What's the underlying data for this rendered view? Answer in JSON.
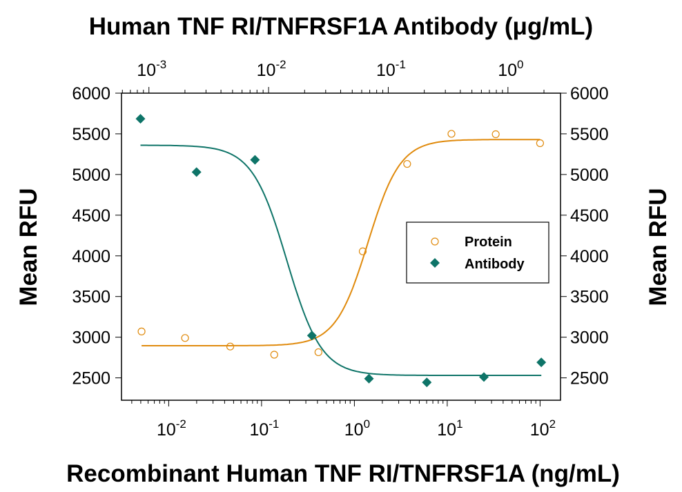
{
  "chart_data": {
    "type": "scatter",
    "title": "Human TNF RI/TNFRSF1A Antibody (μg/mL)",
    "xlabel": "Recombinant Human TNF RI/TNFRSF1A (ng/mL)",
    "ylabel": "Mean RFU",
    "ylabel_right": "Mean RFU",
    "x_scale": "log",
    "xlim": [
      0.0031,
      166
    ],
    "x2_scale": "log",
    "x2lim": [
      0.00059,
      2.75
    ],
    "ylim": [
      2225,
      6000
    ],
    "x_ticks": [
      {
        "base": "10",
        "exp": "-2",
        "value": 0.01
      },
      {
        "base": "10",
        "exp": "-1",
        "value": 0.1
      },
      {
        "base": "10",
        "exp": "0",
        "value": 1
      },
      {
        "base": "10",
        "exp": "1",
        "value": 10
      },
      {
        "base": "10",
        "exp": "2",
        "value": 100
      }
    ],
    "x2_ticks": [
      {
        "base": "10",
        "exp": "-3",
        "value": 0.001
      },
      {
        "base": "10",
        "exp": "-2",
        "value": 0.01
      },
      {
        "base": "10",
        "exp": "-1",
        "value": 0.1
      },
      {
        "base": "10",
        "exp": "0",
        "value": 1
      }
    ],
    "y_ticks": [
      "2500",
      "3000",
      "3500",
      "4000",
      "4500",
      "5000",
      "5500",
      "6000"
    ],
    "grid": false,
    "legend_position": "center-right",
    "series": [
      {
        "name": "Protein",
        "axis": "bottom",
        "marker": "open-circle",
        "color": "#E08A0C",
        "x": [
          0.0051,
          0.015,
          0.046,
          0.137,
          0.41,
          1.23,
          3.7,
          11.1,
          33.3,
          100
        ],
        "y": [
          3070,
          2990,
          2885,
          2785,
          2815,
          4055,
          5130,
          5500,
          5495,
          5385
        ],
        "fit": {
          "model": "4PL",
          "bottom": 2895,
          "top": 5430,
          "ec50": 1.4,
          "hill": 2.5
        }
      },
      {
        "name": "Antibody",
        "axis": "top",
        "marker": "filled-diamond",
        "color": "#0E7468",
        "x": [
          0.00085,
          0.0025,
          0.0077,
          0.023,
          0.069,
          0.21,
          0.63,
          1.9
        ],
        "y": [
          5685,
          5030,
          5180,
          3020,
          2490,
          2445,
          2510,
          2690
        ],
        "fit": {
          "model": "4PL",
          "bottom": 2530,
          "top": 5360,
          "ec50": 0.0142,
          "hill": -3
        }
      }
    ]
  }
}
